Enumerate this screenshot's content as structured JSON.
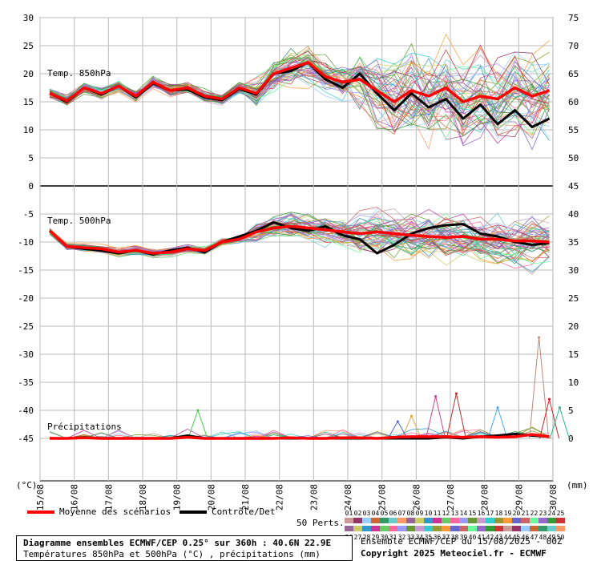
{
  "chart_data": {
    "type": "line",
    "x_dates": [
      "15/08",
      "16/08",
      "17/08",
      "18/08",
      "19/08",
      "20/08",
      "21/08",
      "22/08",
      "23/08",
      "24/08",
      "25/08",
      "26/08",
      "27/08",
      "28/08",
      "29/08",
      "30/08"
    ],
    "left_axis_ticks": [
      "30",
      "25",
      "20",
      "15",
      "10",
      "5",
      "0",
      "-5",
      "-10",
      "-15",
      "-20",
      "-25",
      "-30",
      "-35",
      "-40",
      "-45"
    ],
    "right_axis_ticks": [
      "75",
      "70",
      "65",
      "60",
      "55",
      "50",
      "45",
      "40",
      "35",
      "30",
      "25",
      "20",
      "15",
      "10",
      "5",
      "0"
    ],
    "left_unit": "(°C)",
    "right_unit": "(mm)",
    "panels": {
      "t850": {
        "label": "Temp. 850hPa",
        "mean": [
          16.5,
          15.2,
          17.5,
          16.5,
          17.8,
          16.0,
          18.5,
          17.0,
          17.5,
          16.0,
          15.5,
          17.5,
          16.5,
          20.0,
          21.0,
          22.0,
          19.5,
          18.5,
          19.0,
          17.0,
          15.0,
          17.0,
          16.0,
          17.5,
          15.0,
          16.0,
          15.5,
          17.5,
          16.0,
          17.0
        ],
        "control": [
          16.5,
          15.0,
          17.5,
          16.3,
          17.8,
          15.8,
          18.3,
          17.0,
          17.2,
          15.8,
          15.3,
          17.3,
          16.3,
          20.0,
          20.5,
          22.0,
          19.0,
          17.5,
          20.0,
          16.5,
          13.5,
          16.5,
          14.0,
          15.5,
          12.0,
          14.5,
          11.0,
          13.5,
          10.5,
          12.0
        ]
      },
      "t500": {
        "label": "Temp. 500hPa",
        "mean": [
          -8.0,
          -10.8,
          -11.0,
          -11.2,
          -11.8,
          -11.5,
          -12.0,
          -11.8,
          -11.2,
          -11.5,
          -10.0,
          -9.5,
          -8.2,
          -7.5,
          -7.2,
          -7.5,
          -7.8,
          -8.2,
          -8.5,
          -8.2,
          -8.5,
          -8.8,
          -9.0,
          -9.2,
          -9.0,
          -9.5,
          -9.5,
          -9.8,
          -9.8,
          -10.0
        ],
        "control": [
          -8.0,
          -10.8,
          -11.2,
          -11.5,
          -12.0,
          -11.5,
          -12.2,
          -11.5,
          -11.0,
          -11.8,
          -10.0,
          -9.0,
          -8.0,
          -6.5,
          -7.5,
          -8.0,
          -7.2,
          -8.8,
          -9.5,
          -12.0,
          -10.5,
          -8.5,
          -7.5,
          -7.0,
          -6.8,
          -8.5,
          -9.0,
          -10.0,
          -10.5,
          -10.2
        ]
      },
      "precip": {
        "label": "Précipitations",
        "mean": [
          0,
          0,
          0.1,
          0,
          0,
          0,
          0,
          0,
          0.2,
          0,
          0,
          0,
          0,
          0,
          0.1,
          0,
          0,
          0.1,
          0.1,
          0,
          0.2,
          0.3,
          0.3,
          0.3,
          0.2,
          0.3,
          0.2,
          0.3,
          0.7,
          0.3
        ],
        "control": [
          0,
          0,
          0.2,
          0,
          0,
          0,
          0,
          0,
          0.5,
          0,
          0,
          0,
          0,
          0,
          0,
          0,
          0,
          0,
          0,
          0,
          0,
          0,
          0,
          0.2,
          0,
          0.3,
          0.5,
          0.8,
          0.5,
          0.3
        ],
        "spikes": [
          {
            "step": 8.6,
            "value": 5.0,
            "color": "#44cc44"
          },
          {
            "step": 22.4,
            "value": 7.5,
            "color": "#cc4488"
          },
          {
            "step": 23.6,
            "value": 8.0,
            "color": "#aa3333"
          },
          {
            "step": 21.0,
            "value": 4.0,
            "color": "#ddaa44"
          },
          {
            "step": 26.0,
            "value": 5.5,
            "color": "#44aaee"
          },
          {
            "step": 28.4,
            "value": 18.0,
            "color": "#bb8877"
          },
          {
            "step": 29.0,
            "value": 7.0,
            "color": "#cc2222"
          },
          {
            "step": 29.6,
            "value": 5.5,
            "color": "#22bb88"
          },
          {
            "step": 20.2,
            "value": 3.0,
            "color": "#4466cc"
          }
        ]
      }
    }
  },
  "legend": {
    "mean_label": "Moyenne des scénarios",
    "control_label": "Contrôle/Det",
    "perts_label": "50 Perts.",
    "mean_color": "#ff0000",
    "control_color": "#000000"
  },
  "members_top": [
    "01",
    "02",
    "03",
    "04",
    "05",
    "06",
    "07",
    "08",
    "09",
    "10",
    "11",
    "12",
    "13",
    "14",
    "15",
    "16",
    "17",
    "18",
    "19",
    "20",
    "21",
    "22",
    "23",
    "24",
    "25"
  ],
  "members_bottom": [
    "26",
    "27",
    "28",
    "29",
    "30",
    "31",
    "32",
    "33",
    "34",
    "35",
    "36",
    "37",
    "38",
    "39",
    "40",
    "41",
    "42",
    "43",
    "44",
    "45",
    "46",
    "47",
    "48",
    "49",
    "50"
  ],
  "member_colors": [
    "#cc9999",
    "#993366",
    "#99ccff",
    "#cc6633",
    "#339966",
    "#66cccc",
    "#ff9966",
    "#996699",
    "#cccc66",
    "#3399cc",
    "#cc3399",
    "#66cc66",
    "#ff6699",
    "#9999ff",
    "#669933",
    "#cc99cc",
    "#33cccc",
    "#999933",
    "#ff9933",
    "#6666cc",
    "#cc6666",
    "#66ff99",
    "#9966cc",
    "#339933",
    "#cc3333"
  ],
  "info": {
    "title": "Diagramme ensembles ECMWF/CEP 0.25° sur 360h : 40.6N 22.9E",
    "subtitle": "Températures 850hPa et 500hPa (°C) , précipitations (mm)",
    "run": "Ensemble ECMWF/CEP du 15/08/2025 - 00Z",
    "copyright": "Copyright 2025 Meteociel.fr - ECMWF"
  }
}
